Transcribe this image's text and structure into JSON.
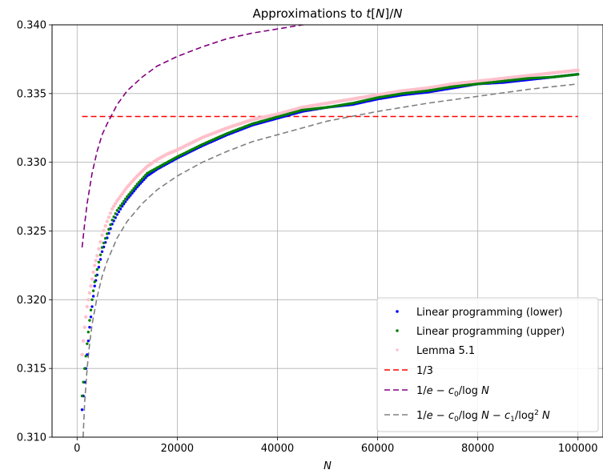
{
  "chart_data": {
    "type": "line",
    "title_parts": {
      "pre": "Approximations to ",
      "t": "t",
      "lb": "[",
      "N": "N",
      "rb": "]",
      "slash": "/",
      "N2": "N"
    },
    "xlabel": "N",
    "xlim": [
      -5000,
      105000
    ],
    "ylim": [
      0.31,
      0.34
    ],
    "xticks": [
      0,
      20000,
      40000,
      60000,
      80000,
      100000
    ],
    "xtick_labels": [
      "0",
      "20000",
      "40000",
      "60000",
      "80000",
      "100000"
    ],
    "yticks": [
      0.31,
      0.315,
      0.32,
      0.325,
      0.33,
      0.335,
      0.34
    ],
    "ytick_labels": [
      "0.310",
      "0.315",
      "0.320",
      "0.325",
      "0.330",
      "0.335",
      "0.340"
    ],
    "grid": true,
    "legend_position": "lower-right",
    "series": [
      {
        "name": "Linear programming (lower)",
        "style": "dots",
        "color": "#0000ff",
        "x": [
          1000,
          1500,
          2000,
          2500,
          3000,
          3500,
          4000,
          5000,
          6000,
          7000,
          8000,
          9000,
          10000,
          12000,
          14000,
          16000,
          18000,
          20000,
          25000,
          30000,
          35000,
          40000,
          45000,
          50000,
          55000,
          60000,
          65000,
          70000,
          75000,
          80000,
          85000,
          90000,
          95000,
          100000
        ],
        "y": [
          0.312,
          0.314,
          0.316,
          0.318,
          0.3195,
          0.321,
          0.3218,
          0.3235,
          0.3245,
          0.3255,
          0.3262,
          0.3268,
          0.3273,
          0.3282,
          0.329,
          0.3295,
          0.3299,
          0.3303,
          0.3312,
          0.332,
          0.3327,
          0.3332,
          0.3337,
          0.334,
          0.3342,
          0.3346,
          0.3349,
          0.3351,
          0.3354,
          0.3357,
          0.3358,
          0.336,
          0.3362,
          0.3364
        ]
      },
      {
        "name": "Linear programming (upper)",
        "style": "dots",
        "color": "#008000",
        "x": [
          1000,
          1500,
          2000,
          2500,
          3000,
          3500,
          4000,
          5000,
          6000,
          7000,
          8000,
          9000,
          10000,
          12000,
          14000,
          16000,
          18000,
          20000,
          25000,
          30000,
          35000,
          40000,
          45000,
          50000,
          55000,
          60000,
          65000,
          70000,
          75000,
          80000,
          85000,
          90000,
          95000,
          100000
        ],
        "y": [
          0.313,
          0.315,
          0.3168,
          0.3185,
          0.32,
          0.3213,
          0.3222,
          0.3238,
          0.3248,
          0.3258,
          0.3265,
          0.327,
          0.3275,
          0.3284,
          0.3292,
          0.3296,
          0.33,
          0.3304,
          0.3313,
          0.3321,
          0.3328,
          0.3333,
          0.3338,
          0.334,
          0.3343,
          0.3347,
          0.335,
          0.3352,
          0.3355,
          0.3357,
          0.3359,
          0.3361,
          0.3362,
          0.3364
        ]
      },
      {
        "name": "Lemma 5.1",
        "style": "dots",
        "color": "#ffc0cb",
        "x": [
          1000,
          1500,
          2000,
          2500,
          3000,
          3500,
          4000,
          5000,
          6000,
          7000,
          8000,
          9000,
          10000,
          12000,
          14000,
          16000,
          18000,
          20000,
          25000,
          30000,
          35000,
          40000,
          45000,
          50000,
          55000,
          60000,
          65000,
          70000,
          75000,
          80000,
          85000,
          90000,
          95000,
          100000
        ],
        "y": [
          0.316,
          0.318,
          0.3195,
          0.3205,
          0.3215,
          0.3225,
          0.3232,
          0.3247,
          0.3257,
          0.3266,
          0.3272,
          0.3277,
          0.3282,
          0.329,
          0.3297,
          0.3302,
          0.3306,
          0.3309,
          0.3318,
          0.3325,
          0.3331,
          0.3335,
          0.334,
          0.3343,
          0.3346,
          0.3349,
          0.3352,
          0.3354,
          0.3357,
          0.3359,
          0.3361,
          0.3363,
          0.3365,
          0.3367
        ]
      },
      {
        "name": "1/3",
        "style": "dashed",
        "color": "#ff0000",
        "dash": [
          7,
          4
        ],
        "x": [
          1000,
          100000
        ],
        "y": [
          0.33333,
          0.33333
        ]
      },
      {
        "name_parts": [
          "1/",
          "e",
          " − ",
          "c",
          "0",
          "/log ",
          "N"
        ],
        "style": "dashed",
        "color": "#800080",
        "dash": [
          7,
          4
        ],
        "x": [
          1000,
          1500,
          2000,
          3000,
          4000,
          5000,
          6000,
          8000,
          10000,
          13000,
          16000,
          20000,
          25000,
          30000,
          35000,
          40000,
          45000,
          50000,
          55000
        ],
        "y": [
          0.3238,
          0.3255,
          0.327,
          0.3292,
          0.3308,
          0.332,
          0.3328,
          0.3342,
          0.3352,
          0.3362,
          0.337,
          0.3377,
          0.3384,
          0.339,
          0.3394,
          0.3397,
          0.34,
          0.3402,
          0.3405
        ]
      },
      {
        "name_parts": [
          "1/",
          "e",
          " − ",
          "c",
          "0",
          "/log ",
          "N",
          " − ",
          "c",
          "1",
          "/log",
          "2",
          " ",
          "N"
        ],
        "style": "dashed",
        "color": "#808080",
        "dash": [
          7,
          4
        ],
        "x": [
          1200,
          1500,
          2000,
          2500,
          3000,
          4000,
          5000,
          6000,
          8000,
          10000,
          13000,
          16000,
          20000,
          25000,
          30000,
          35000,
          40000,
          50000,
          60000,
          70000,
          80000,
          90000,
          100000
        ],
        "y": [
          0.31,
          0.3125,
          0.315,
          0.3168,
          0.3182,
          0.3202,
          0.3217,
          0.3228,
          0.3245,
          0.3257,
          0.327,
          0.328,
          0.329,
          0.33,
          0.3308,
          0.3315,
          0.332,
          0.333,
          0.3337,
          0.3343,
          0.3348,
          0.3353,
          0.3357
        ]
      }
    ]
  }
}
